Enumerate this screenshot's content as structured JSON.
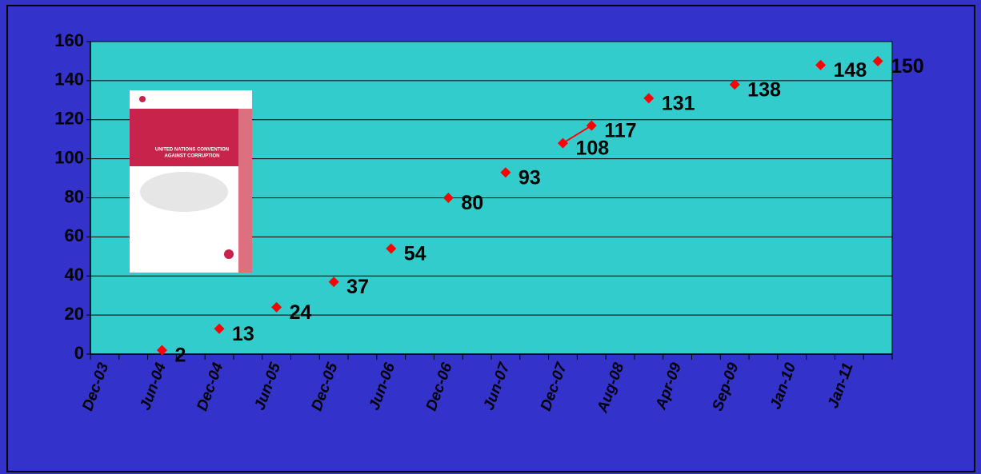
{
  "chart_data": {
    "type": "line",
    "categories": [
      "Dec-03",
      null,
      "Jun-04",
      null,
      "Dec-04",
      null,
      "Jun-05",
      null,
      "Dec-05",
      null,
      "Jun-06",
      null,
      "Dec-06",
      null,
      "Jun-07",
      null,
      "Dec-07",
      null,
      "Aug-08",
      null,
      "Apr-09",
      null,
      "Sep-09",
      null,
      "Jan-10",
      null,
      "Jan-11",
      null
    ],
    "series": [
      {
        "color": "#ff0000",
        "values": [
          null,
          null,
          2,
          null,
          13,
          null,
          24,
          null,
          37,
          null,
          54,
          null,
          80,
          null,
          93,
          null,
          108,
          117,
          null,
          131,
          null,
          null,
          138,
          null,
          null,
          148,
          null,
          150
        ]
      }
    ],
    "ylim": [
      0,
      160
    ],
    "yticks": [
      0,
      20,
      40,
      60,
      80,
      100,
      120,
      140,
      160
    ],
    "grid": true
  },
  "cover": {
    "title_lines": [
      "UNITED NATIONS CONVENTION",
      "AGAINST CORRUPTION"
    ]
  }
}
